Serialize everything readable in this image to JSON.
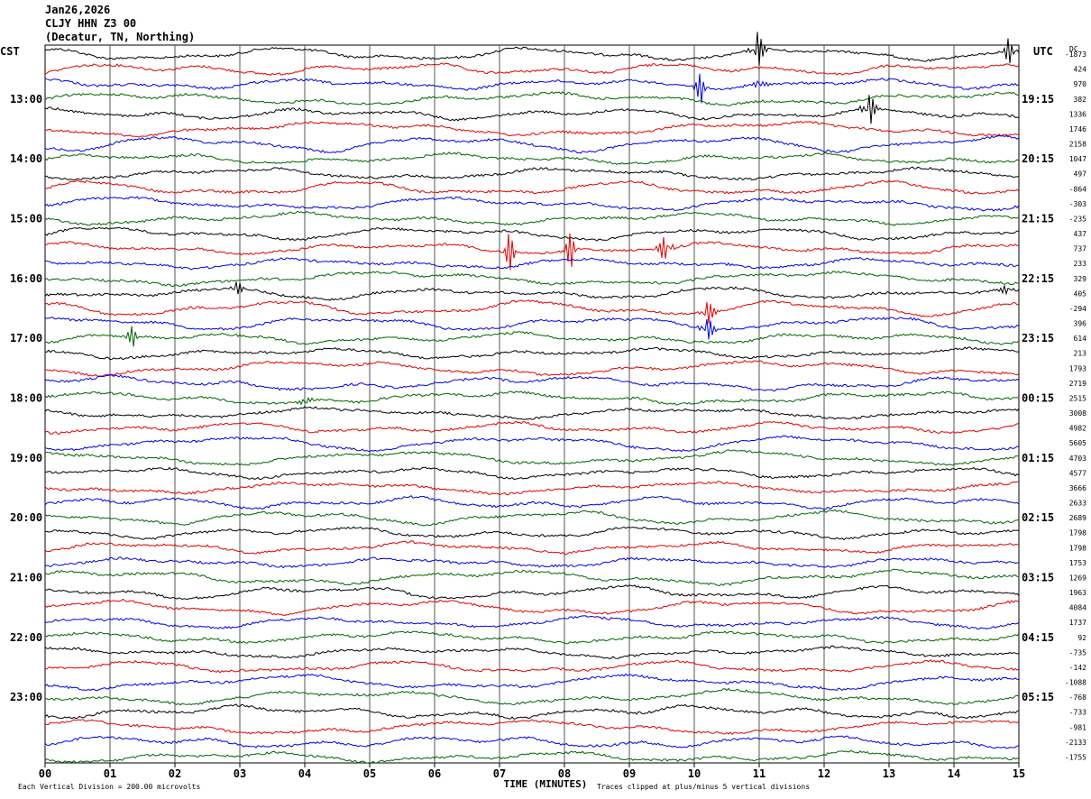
{
  "header": {
    "date": "Jan26,2026",
    "station": "CLJY HHN Z3 00",
    "location": "(Decatur, TN, Northing)"
  },
  "chart_data": {
    "type": "line",
    "title": "",
    "xlabel": "TIME (MINUTES)",
    "xlim": [
      0,
      15
    ],
    "x_ticks": [
      "00",
      "01",
      "02",
      "03",
      "04",
      "05",
      "06",
      "07",
      "08",
      "09",
      "10",
      "11",
      "12",
      "13",
      "14",
      "15"
    ],
    "left_axis_title": "CST",
    "right_axis_title": "UTC",
    "dc_title": "DC",
    "left_labels": [
      "13:00",
      "14:00",
      "15:00",
      "16:00",
      "17:00",
      "18:00",
      "19:00",
      "20:00",
      "21:00",
      "22:00",
      "23:00"
    ],
    "right_labels": [
      "19:15",
      "20:15",
      "21:15",
      "22:15",
      "23:15",
      "00:15",
      "01:15",
      "02:15",
      "03:15",
      "04:15",
      "05:15"
    ],
    "dc_offsets": [
      -1873,
      424,
      970,
      382,
      1336,
      1746,
      2158,
      1047,
      497,
      -864,
      -303,
      -235,
      437,
      737,
      233,
      329,
      405,
      -294,
      396,
      614,
      213,
      1793,
      2719,
      2515,
      3008,
      4982,
      5605,
      4703,
      4577,
      3666,
      2633,
      2689,
      1798,
      1798,
      1753,
      1269,
      1963,
      4084,
      1737,
      92,
      -735,
      -142,
      -1088,
      -768,
      -733,
      -981,
      -2133,
      -1755
    ],
    "trace_colors": [
      "#000000",
      "#e00000",
      "#0000e0",
      "#006400"
    ],
    "footer_left": "Each Vertical Division =  200.00 microvolts",
    "footer_right": "Traces clipped at plus/minus 5 vertical divisions",
    "events": [
      {
        "trace": 0,
        "minute": 10.98,
        "amp": 30
      },
      {
        "trace": 0,
        "minute": 14.85,
        "amp": 18
      },
      {
        "trace": 2,
        "minute": 10.1,
        "amp": 22
      },
      {
        "trace": 2,
        "minute": 11.0,
        "amp": 14
      },
      {
        "trace": 4,
        "minute": 12.7,
        "amp": 30
      },
      {
        "trace": 13,
        "minute": 7.15,
        "amp": 28
      },
      {
        "trace": 13,
        "minute": 8.1,
        "amp": 26
      },
      {
        "trace": 13,
        "minute": 9.55,
        "amp": 26
      },
      {
        "trace": 16,
        "minute": 2.95,
        "amp": 14
      },
      {
        "trace": 16,
        "minute": 14.8,
        "amp": 10
      },
      {
        "trace": 17,
        "minute": 10.2,
        "amp": 22
      },
      {
        "trace": 18,
        "minute": 10.2,
        "amp": 22
      },
      {
        "trace": 19,
        "minute": 1.35,
        "amp": 14
      },
      {
        "trace": 23,
        "minute": 4.0,
        "amp": 8
      }
    ]
  }
}
